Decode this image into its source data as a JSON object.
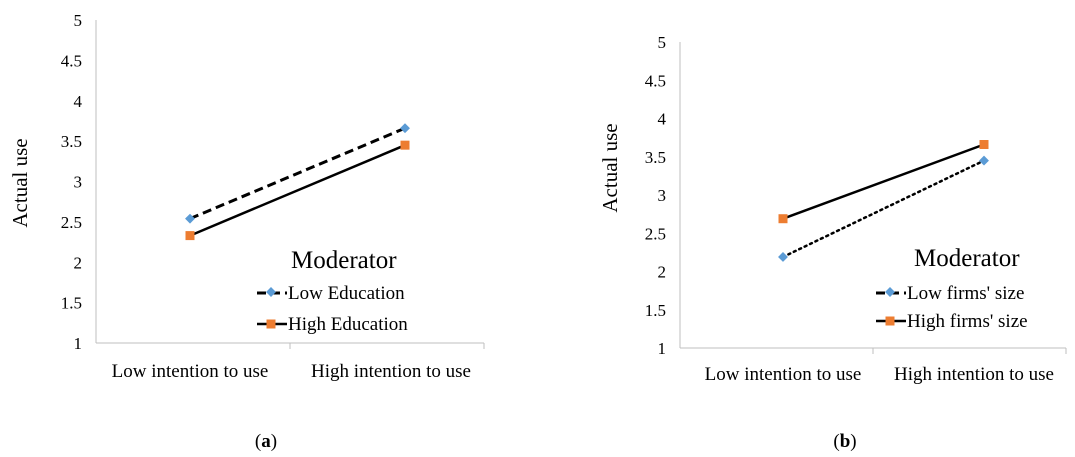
{
  "chart_data": [
    {
      "type": "line",
      "panel_label": "a",
      "categories": [
        "Low intention to use",
        "High intention to use"
      ],
      "ylabel": "Actual use",
      "ylim": [
        1,
        5
      ],
      "yticks": [
        "1",
        "1.5",
        "2",
        "2.5",
        "3",
        "3.5",
        "4",
        "4.5",
        "5"
      ],
      "grid": false,
      "legend_title": "Moderator",
      "legend_position": "right",
      "series": [
        {
          "name": "Low Education",
          "values": [
            2.54,
            3.66
          ],
          "color": "#5b9bd5",
          "marker": "diamond",
          "line_style": "dashed"
        },
        {
          "name": "High Education",
          "values": [
            2.33,
            3.45
          ],
          "color": "#ed7d31",
          "marker": "square",
          "line_style": "solid"
        }
      ]
    },
    {
      "type": "line",
      "panel_label": "b",
      "categories": [
        "Low intention to use",
        "High intention to use"
      ],
      "ylabel": "Actual use",
      "ylim": [
        1,
        5
      ],
      "yticks": [
        "1",
        "1.5",
        "2",
        "2.5",
        "3",
        "3.5",
        "4",
        "4.5",
        "5"
      ],
      "grid": false,
      "legend_title": "Moderator",
      "legend_position": "right",
      "series": [
        {
          "name": "Low firms' size",
          "values": [
            2.19,
            3.45
          ],
          "color": "#5b9bd5",
          "marker": "diamond",
          "line_style": "dotted"
        },
        {
          "name": "High firms' size",
          "values": [
            2.69,
            3.66
          ],
          "color": "#ed7d31",
          "marker": "square",
          "line_style": "solid"
        }
      ]
    }
  ]
}
